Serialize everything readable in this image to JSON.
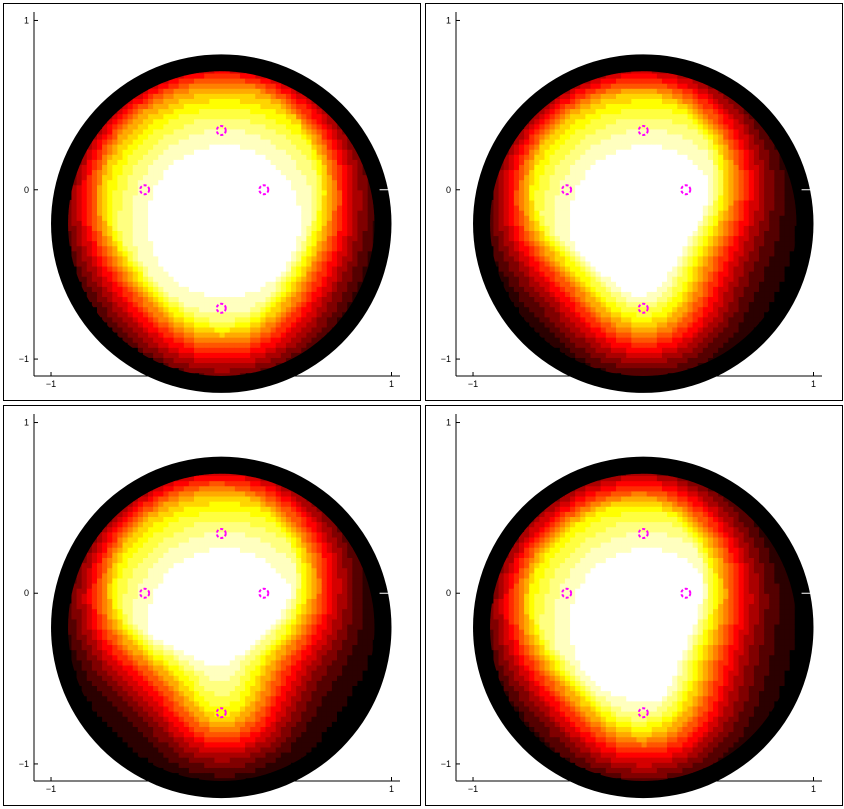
{
  "chart_data": [
    {
      "type": "heatmap",
      "colormap": "hot",
      "xlim": [
        -1.1,
        1.05
      ],
      "ylim": [
        -1.1,
        1.05
      ],
      "xticks": [
        -1,
        0,
        1
      ],
      "yticks": [
        -1,
        0,
        1
      ],
      "xtick_labels": [
        "−1",
        "0",
        "1"
      ],
      "ytick_labels": [
        "−1",
        "0",
        "1"
      ],
      "disk_radius": 1.0,
      "disk_center": [
        0,
        -0.2
      ],
      "markers": [
        {
          "x": 0,
          "y": 0.35
        },
        {
          "x": -0.45,
          "y": 0
        },
        {
          "x": 0.25,
          "y": 0
        },
        {
          "x": 0,
          "y": -0.7
        }
      ],
      "marker_color": "#ff00ff",
      "hotspots": [
        {
          "x": 0,
          "y": 0.35,
          "intensity": 1.0,
          "spread": 0.42
        },
        {
          "x": -0.45,
          "y": 0,
          "intensity": 1.0,
          "spread": 0.38
        },
        {
          "x": 0.25,
          "y": 0,
          "intensity": 0.8,
          "spread": 0.35
        },
        {
          "x": 0,
          "y": -0.7,
          "intensity": 1.0,
          "spread": 0.38
        },
        {
          "x": -0.05,
          "y": -0.05,
          "intensity": 0.95,
          "spread": 0.45
        }
      ]
    },
    {
      "type": "heatmap",
      "colormap": "hot",
      "xlim": [
        -1.1,
        1.05
      ],
      "ylim": [
        -1.1,
        1.05
      ],
      "xticks": [
        -1,
        0,
        1
      ],
      "yticks": [
        -1,
        0,
        1
      ],
      "xtick_labels": [
        "−1",
        "0",
        "1"
      ],
      "ytick_labels": [
        "−1",
        "0",
        "1"
      ],
      "disk_radius": 1.0,
      "disk_center": [
        0,
        -0.2
      ],
      "markers": [
        {
          "x": 0,
          "y": 0.35
        },
        {
          "x": -0.45,
          "y": 0
        },
        {
          "x": 0.25,
          "y": 0
        },
        {
          "x": 0,
          "y": -0.7
        }
      ],
      "marker_color": "#ff00ff",
      "hotspots": [
        {
          "x": 0,
          "y": 0.35,
          "intensity": 1.0,
          "spread": 0.38
        },
        {
          "x": -0.45,
          "y": 0,
          "intensity": 1.0,
          "spread": 0.35
        },
        {
          "x": 0.25,
          "y": 0,
          "intensity": 0.55,
          "spread": 0.3
        },
        {
          "x": 0,
          "y": -0.7,
          "intensity": 1.0,
          "spread": 0.3
        },
        {
          "x": -0.15,
          "y": 0,
          "intensity": 0.9,
          "spread": 0.4
        }
      ]
    },
    {
      "type": "heatmap",
      "colormap": "hot",
      "xlim": [
        -1.1,
        1.05
      ],
      "ylim": [
        -1.1,
        1.05
      ],
      "xticks": [
        -1,
        0,
        1
      ],
      "yticks": [
        -1,
        0,
        1
      ],
      "xtick_labels": [
        "−1",
        "0",
        "1"
      ],
      "ytick_labels": [
        "−1",
        "0",
        "1"
      ],
      "disk_radius": 1.0,
      "disk_center": [
        0,
        -0.2
      ],
      "markers": [
        {
          "x": 0,
          "y": 0.35
        },
        {
          "x": -0.45,
          "y": 0
        },
        {
          "x": 0.25,
          "y": 0
        },
        {
          "x": 0,
          "y": -0.7
        }
      ],
      "marker_color": "#ff00ff",
      "hotspots": [
        {
          "x": 0,
          "y": 0.35,
          "intensity": 1.0,
          "spread": 0.42
        },
        {
          "x": -0.45,
          "y": 0,
          "intensity": 0.95,
          "spread": 0.33
        },
        {
          "x": 0.25,
          "y": 0,
          "intensity": 0.6,
          "spread": 0.3
        },
        {
          "x": 0,
          "y": -0.7,
          "intensity": 0.9,
          "spread": 0.25
        },
        {
          "x": -0.1,
          "y": 0.1,
          "intensity": 0.85,
          "spread": 0.38
        }
      ]
    },
    {
      "type": "heatmap",
      "colormap": "hot",
      "xlim": [
        -1.1,
        1.05
      ],
      "ylim": [
        -1.1,
        1.05
      ],
      "xticks": [
        -1,
        0,
        1
      ],
      "yticks": [
        -1,
        0,
        1
      ],
      "xtick_labels": [
        "−1",
        "0",
        "1"
      ],
      "ytick_labels": [
        "−1",
        "0",
        "1"
      ],
      "disk_radius": 1.0,
      "disk_center": [
        0,
        -0.2
      ],
      "markers": [
        {
          "x": 0,
          "y": 0.35
        },
        {
          "x": -0.45,
          "y": 0
        },
        {
          "x": 0.25,
          "y": 0
        },
        {
          "x": 0,
          "y": -0.7
        }
      ],
      "marker_color": "#ff00ff",
      "hotspots": [
        {
          "x": 0,
          "y": 0.35,
          "intensity": 0.95,
          "spread": 0.32
        },
        {
          "x": -0.45,
          "y": 0,
          "intensity": 1.0,
          "spread": 0.35
        },
        {
          "x": 0.25,
          "y": 0,
          "intensity": 0.5,
          "spread": 0.28
        },
        {
          "x": 0,
          "y": -0.7,
          "intensity": 1.0,
          "spread": 0.32
        },
        {
          "x": -0.2,
          "y": -0.1,
          "intensity": 0.95,
          "spread": 0.42
        }
      ]
    }
  ]
}
